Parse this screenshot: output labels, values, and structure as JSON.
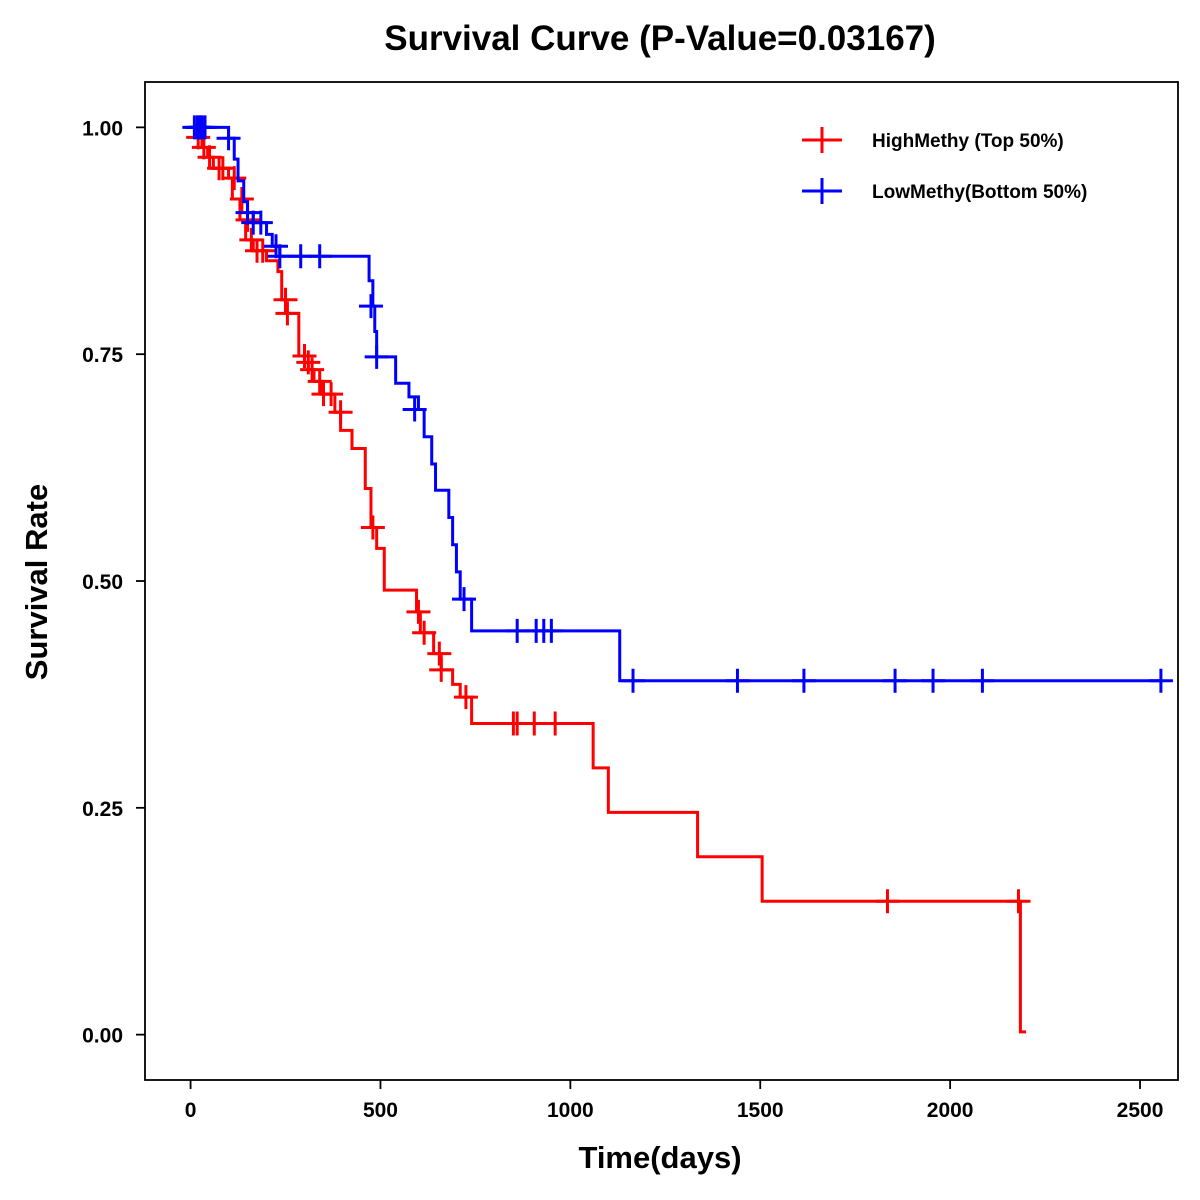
{
  "chart_data": {
    "type": "line",
    "subtype": "kaplan-meier-step",
    "title": "Survival Curve (P-Value=0.03167)",
    "xlabel": "Time(days)",
    "ylabel": "Survival Rate",
    "xlim": [
      -120,
      2600
    ],
    "ylim": [
      -0.05,
      1.05
    ],
    "x_ticks": [
      0,
      500,
      1000,
      1500,
      2000,
      2500
    ],
    "x_tick_labels": [
      "0",
      "500",
      "1000",
      "1500",
      "2000",
      "2500"
    ],
    "y_ticks": [
      0,
      0.25,
      0.5,
      0.75,
      1
    ],
    "y_tick_labels": [
      "0.00",
      "0.25",
      "0.50",
      "0.75",
      "1.00"
    ],
    "grid": false,
    "legend_position": "top-right",
    "series": [
      {
        "name": "HighMethy (Top 50%)",
        "color": "#ff0000",
        "steps": [
          [
            0,
            1.0
          ],
          [
            15,
            0.989
          ],
          [
            30,
            0.978
          ],
          [
            45,
            0.967
          ],
          [
            60,
            0.955
          ],
          [
            100,
            0.944
          ],
          [
            110,
            0.921
          ],
          [
            130,
            0.898
          ],
          [
            145,
            0.876
          ],
          [
            165,
            0.864
          ],
          [
            200,
            0.853
          ],
          [
            230,
            0.841
          ],
          [
            240,
            0.81
          ],
          [
            250,
            0.795
          ],
          [
            285,
            0.748
          ],
          [
            300,
            0.741
          ],
          [
            310,
            0.733
          ],
          [
            325,
            0.72
          ],
          [
            345,
            0.706
          ],
          [
            380,
            0.686
          ],
          [
            395,
            0.666
          ],
          [
            425,
            0.646
          ],
          [
            460,
            0.602
          ],
          [
            475,
            0.559
          ],
          [
            490,
            0.536
          ],
          [
            510,
            0.49
          ],
          [
            595,
            0.466
          ],
          [
            605,
            0.443
          ],
          [
            640,
            0.42
          ],
          [
            660,
            0.402
          ],
          [
            690,
            0.386
          ],
          [
            710,
            0.372
          ],
          [
            740,
            0.343
          ],
          [
            1060,
            0.294
          ],
          [
            1100,
            0.245
          ],
          [
            1335,
            0.196
          ],
          [
            1505,
            0.147
          ],
          [
            2185,
            0.003
          ]
        ],
        "end_x": 2200,
        "censored": [
          [
            20,
            0.989
          ],
          [
            35,
            0.978
          ],
          [
            50,
            0.967
          ],
          [
            75,
            0.955
          ],
          [
            85,
            0.955
          ],
          [
            115,
            0.944
          ],
          [
            135,
            0.921
          ],
          [
            150,
            0.898
          ],
          [
            160,
            0.876
          ],
          [
            175,
            0.864
          ],
          [
            190,
            0.864
          ],
          [
            250,
            0.81
          ],
          [
            255,
            0.795
          ],
          [
            300,
            0.748
          ],
          [
            310,
            0.741
          ],
          [
            320,
            0.733
          ],
          [
            340,
            0.72
          ],
          [
            350,
            0.706
          ],
          [
            370,
            0.706
          ],
          [
            395,
            0.686
          ],
          [
            480,
            0.559
          ],
          [
            600,
            0.466
          ],
          [
            615,
            0.443
          ],
          [
            655,
            0.42
          ],
          [
            660,
            0.402
          ],
          [
            725,
            0.372
          ],
          [
            850,
            0.343
          ],
          [
            860,
            0.343
          ],
          [
            905,
            0.343
          ],
          [
            960,
            0.343
          ],
          [
            1835,
            0.147
          ],
          [
            2180,
            0.147
          ]
        ]
      },
      {
        "name": "LowMethy(Bottom 50%)",
        "color": "#0000ff",
        "steps": [
          [
            0,
            1.0
          ],
          [
            100,
            0.988
          ],
          [
            115,
            0.965
          ],
          [
            125,
            0.941
          ],
          [
            140,
            0.918
          ],
          [
            150,
            0.906
          ],
          [
            165,
            0.895
          ],
          [
            200,
            0.882
          ],
          [
            215,
            0.869
          ],
          [
            235,
            0.858
          ],
          [
            470,
            0.831
          ],
          [
            480,
            0.803
          ],
          [
            485,
            0.775
          ],
          [
            490,
            0.747
          ],
          [
            540,
            0.718
          ],
          [
            575,
            0.703
          ],
          [
            600,
            0.689
          ],
          [
            615,
            0.659
          ],
          [
            635,
            0.629
          ],
          [
            645,
            0.6
          ],
          [
            680,
            0.57
          ],
          [
            690,
            0.54
          ],
          [
            700,
            0.51
          ],
          [
            710,
            0.48
          ],
          [
            740,
            0.445
          ],
          [
            1130,
            0.39
          ]
        ],
        "end_x": 2560,
        "censored": [
          [
            10,
            1.0
          ],
          [
            18,
            1.0
          ],
          [
            22,
            1.0
          ],
          [
            26,
            1.0
          ],
          [
            30,
            1.0
          ],
          [
            38,
            1.0
          ],
          [
            100,
            0.988
          ],
          [
            150,
            0.906
          ],
          [
            165,
            0.895
          ],
          [
            185,
            0.895
          ],
          [
            225,
            0.869
          ],
          [
            235,
            0.858
          ],
          [
            290,
            0.858
          ],
          [
            340,
            0.858
          ],
          [
            475,
            0.803
          ],
          [
            490,
            0.747
          ],
          [
            590,
            0.689
          ],
          [
            720,
            0.48
          ],
          [
            860,
            0.445
          ],
          [
            910,
            0.445
          ],
          [
            930,
            0.445
          ],
          [
            950,
            0.445
          ],
          [
            1165,
            0.39
          ],
          [
            1440,
            0.39
          ],
          [
            1615,
            0.39
          ],
          [
            1855,
            0.39
          ],
          [
            1955,
            0.39
          ],
          [
            2085,
            0.39
          ],
          [
            2555,
            0.39
          ]
        ]
      }
    ]
  }
}
